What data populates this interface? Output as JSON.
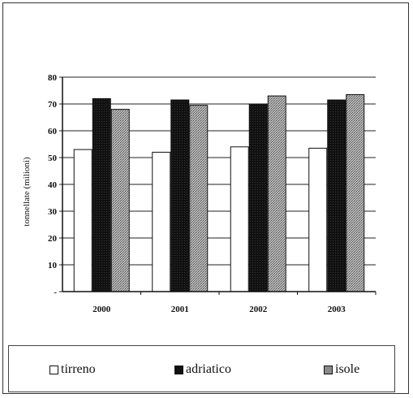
{
  "chart_data": {
    "type": "bar",
    "title": "",
    "xlabel": "",
    "ylabel": "tonnellate (milioni)",
    "categories": [
      "2000",
      "2001",
      "2002",
      "2003"
    ],
    "ylim": [
      0,
      80
    ],
    "yticks": [
      0,
      10,
      20,
      30,
      40,
      50,
      60,
      70,
      80
    ],
    "ytick_labels": [
      "-",
      "10",
      "20",
      "30",
      "40",
      "50",
      "60",
      "70",
      "80"
    ],
    "grid": true,
    "legend_position": "bottom",
    "series": [
      {
        "name": "tirreno",
        "values": [
          53,
          52,
          54,
          53.5
        ],
        "color": "#ffffff"
      },
      {
        "name": "adriatico",
        "values": [
          72,
          71.5,
          70,
          71.5
        ],
        "color": "#1c1c1c"
      },
      {
        "name": "isole",
        "values": [
          68,
          69.5,
          73,
          73.5
        ],
        "color": "#9a9a9a"
      }
    ]
  }
}
